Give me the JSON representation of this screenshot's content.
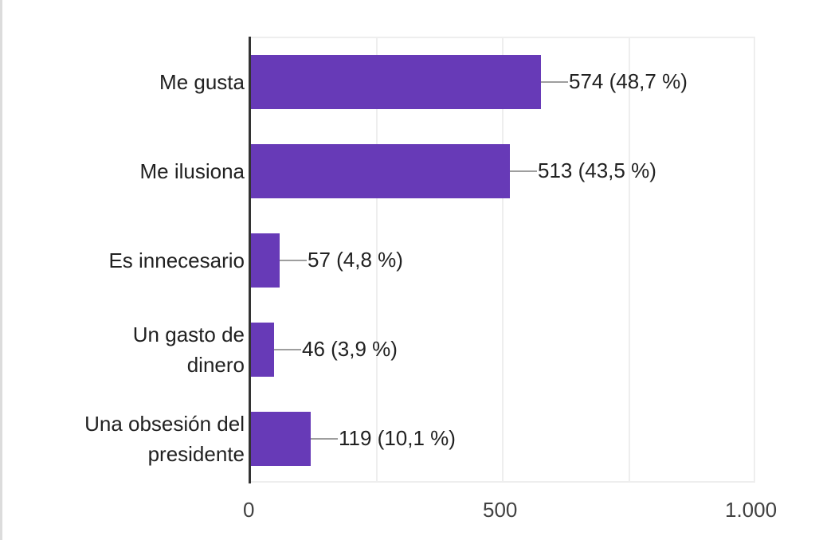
{
  "chart_data": {
    "type": "bar",
    "orientation": "horizontal",
    "title": "",
    "xlabel": "",
    "ylabel": "",
    "categories": [
      "Me gusta",
      "Me ilusiona",
      "Es innecesario",
      "Un gasto de dinero",
      "Una obsesión del presidente"
    ],
    "values": [
      574,
      513,
      57,
      46,
      119
    ],
    "percentages": [
      48.7,
      43.5,
      4.8,
      3.9,
      10.1
    ],
    "data_labels": [
      "574 (48,7 %)",
      "513 (43,5 %)",
      "57 (4,8 %)",
      "46 (3,9 %)",
      "119 (10,1 %)"
    ],
    "category_lines": [
      [
        "Me gusta"
      ],
      [
        "Me ilusiona"
      ],
      [
        "Es innecesario"
      ],
      [
        "Un gasto de",
        "dinero"
      ],
      [
        "Una obsesión del",
        "presidente"
      ]
    ],
    "xlim": [
      0,
      1000
    ],
    "x_ticks": [
      "0",
      "500",
      "1.000"
    ],
    "grid": true,
    "legend": null,
    "colors": {
      "bar": "#673ab7",
      "leader": "#9e9e9e",
      "axis": "#333333",
      "grid": "#eeeeee"
    }
  }
}
